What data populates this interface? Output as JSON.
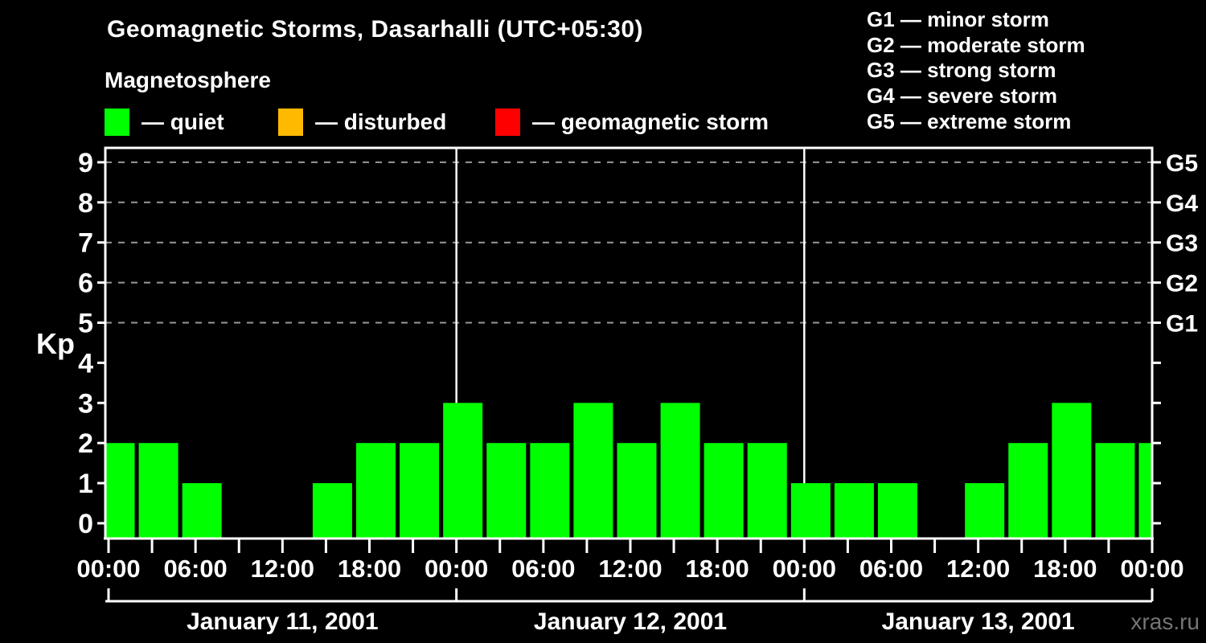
{
  "page": {
    "background": "#000000",
    "watermark": "xras.ru"
  },
  "header": {
    "title": "Geomagnetic Storms, Dasarhalli (UTC+05:30)",
    "subtitle": "Magnetosphere"
  },
  "activity_legend": {
    "items": [
      {
        "key": "quiet",
        "label": "— quiet",
        "color": "#00ff00"
      },
      {
        "key": "disturbed",
        "label": "— disturbed",
        "color": "#ffb900"
      },
      {
        "key": "storm",
        "label": "— geomagnetic storm",
        "color": "#ff0000"
      }
    ]
  },
  "storm_scale_legend": {
    "items": [
      {
        "label": "G1 — minor storm"
      },
      {
        "label": "G2 — moderate storm"
      },
      {
        "label": "G3 — strong storm"
      },
      {
        "label": "G4 — severe storm"
      },
      {
        "label": "G5 — extreme storm"
      }
    ]
  },
  "chart_data": {
    "type": "bar",
    "title": "Geomagnetic Storms, Dasarhalli (UTC+05:30)",
    "ylabel": "Kp",
    "ylim": [
      0,
      9
    ],
    "y_ticks": [
      0,
      1,
      2,
      3,
      4,
      5,
      6,
      7,
      8,
      9
    ],
    "bar_color": "#00ff00",
    "axis_color": "#ffffff",
    "grid": true,
    "grid_style": "dashed",
    "grid_color": "#999999",
    "grid_kp_levels": [
      5,
      6,
      7,
      8,
      9
    ],
    "interval_hours": 3,
    "days": [
      {
        "date": "January 11, 2001",
        "values": [
          2,
          2,
          1,
          0,
          0,
          1,
          2,
          2
        ]
      },
      {
        "date": "January 12, 2001",
        "values": [
          3,
          2,
          2,
          3,
          2,
          3,
          2,
          2
        ]
      },
      {
        "date": "January 13, 2001",
        "values": [
          1,
          1,
          1,
          0,
          1,
          2,
          3,
          2
        ]
      }
    ],
    "next_day_first_value": 2,
    "x_tick_labels": [
      "00:00",
      "06:00",
      "12:00",
      "18:00",
      "00:00",
      "06:00",
      "12:00",
      "18:00",
      "00:00",
      "06:00",
      "12:00",
      "18:00",
      "00:00"
    ],
    "x_label_interval_hours": 6,
    "right_axis": {
      "labels": [
        "G1",
        "G2",
        "G3",
        "G4",
        "G5"
      ],
      "kp_levels": [
        5,
        6,
        7,
        8,
        9
      ]
    },
    "legend_position": "top"
  }
}
